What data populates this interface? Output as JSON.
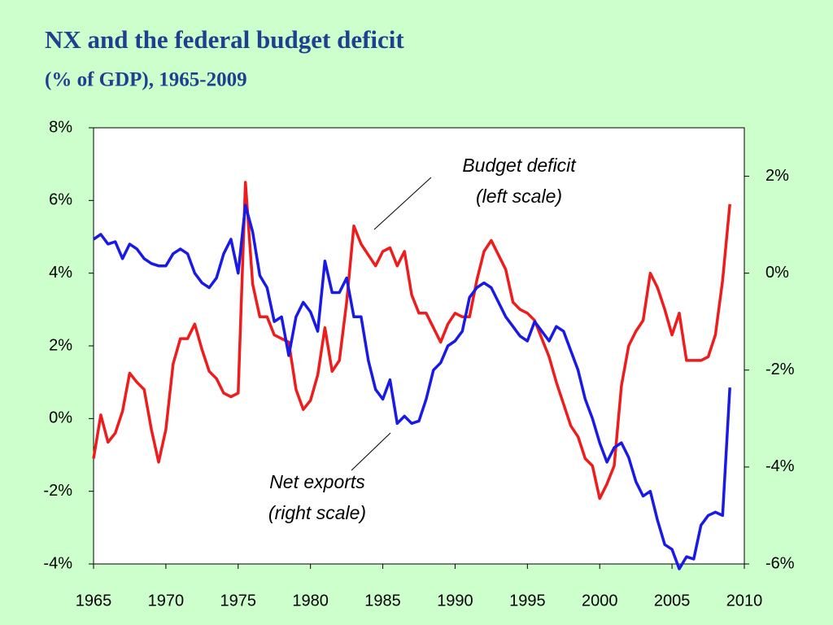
{
  "chart_data": {
    "type": "line",
    "title": "NX and the federal budget deficit",
    "subtitle": "(% of GDP), 1965-2009",
    "x": [
      1965,
      1965.5,
      1966,
      1966.5,
      1967,
      1967.5,
      1968,
      1968.5,
      1969,
      1969.5,
      1970,
      1970.5,
      1971,
      1971.5,
      1972,
      1972.5,
      1973,
      1973.5,
      1974,
      1974.5,
      1975,
      1975.5,
      1976,
      1976.5,
      1977,
      1977.5,
      1978,
      1978.5,
      1979,
      1979.5,
      1980,
      1980.5,
      1981,
      1981.5,
      1982,
      1982.5,
      1983,
      1983.5,
      1984,
      1984.5,
      1985,
      1985.5,
      1986,
      1986.5,
      1987,
      1987.5,
      1988,
      1988.5,
      1989,
      1989.5,
      1990,
      1990.5,
      1991,
      1991.5,
      1992,
      1992.5,
      1993,
      1993.5,
      1994,
      1994.5,
      1995,
      1995.5,
      1996,
      1996.5,
      1997,
      1997.5,
      1998,
      1998.5,
      1999,
      1999.5,
      2000,
      2000.5,
      2001,
      2001.5,
      2002,
      2002.5,
      2003,
      2003.5,
      2004,
      2004.5,
      2005,
      2005.5,
      2006,
      2006.5,
      2007,
      2007.5,
      2008,
      2008.5,
      2009
    ],
    "series": [
      {
        "label": [
          "Budget deficit",
          "(left scale)"
        ],
        "color": "#ee1c1c",
        "axis": "y",
        "values": [
          -1.1,
          0.1,
          -0.65,
          -0.4,
          0.2,
          1.25,
          1.0,
          0.8,
          -0.3,
          -1.2,
          -0.3,
          1.5,
          2.2,
          2.2,
          2.6,
          1.9,
          1.3,
          1.1,
          0.7,
          0.6,
          0.7,
          6.5,
          3.7,
          2.8,
          2.8,
          2.3,
          2.2,
          2.1,
          0.8,
          0.25,
          0.5,
          1.2,
          2.5,
          1.3,
          1.6,
          3.2,
          5.3,
          4.8,
          4.5,
          4.2,
          4.6,
          4.7,
          4.2,
          4.6,
          3.4,
          2.9,
          2.9,
          2.5,
          2.1,
          2.6,
          2.9,
          2.8,
          2.8,
          3.8,
          4.6,
          4.9,
          4.5,
          4.1,
          3.2,
          3.0,
          2.9,
          2.7,
          2.2,
          1.7,
          1.0,
          0.4,
          -0.2,
          -0.5,
          -1.1,
          -1.3,
          -2.2,
          -1.8,
          -1.3,
          0.9,
          2.0,
          2.4,
          2.7,
          4.0,
          3.6,
          3.0,
          2.3,
          2.9,
          1.6,
          1.6,
          1.6,
          1.7,
          2.3,
          3.8,
          5.9
        ]
      },
      {
        "label": [
          "Net exports",
          "(right scale)"
        ],
        "color": "#1a1ae6",
        "axis": "y2",
        "values": [
          0.7,
          0.8,
          0.6,
          0.65,
          0.3,
          0.6,
          0.5,
          0.3,
          0.2,
          0.15,
          0.15,
          0.4,
          0.5,
          0.4,
          0.0,
          -0.2,
          -0.3,
          -0.1,
          0.4,
          0.7,
          0.0,
          1.4,
          0.85,
          -0.05,
          -0.3,
          -1.0,
          -0.9,
          -1.7,
          -0.9,
          -0.6,
          -0.8,
          -1.2,
          0.25,
          -0.4,
          -0.4,
          -0.1,
          -0.9,
          -0.9,
          -1.8,
          -2.4,
          -2.6,
          -2.2,
          -3.1,
          -2.95,
          -3.1,
          -3.05,
          -2.6,
          -2.0,
          -1.85,
          -1.5,
          -1.4,
          -1.2,
          -0.5,
          -0.3,
          -0.2,
          -0.3,
          -0.6,
          -0.9,
          -1.1,
          -1.3,
          -1.4,
          -1.0,
          -1.2,
          -1.4,
          -1.1,
          -1.2,
          -1.6,
          -2.0,
          -2.6,
          -3.0,
          -3.5,
          -3.9,
          -3.6,
          -3.5,
          -3.8,
          -4.3,
          -4.6,
          -4.5,
          -5.1,
          -5.6,
          -5.7,
          -6.1,
          -5.85,
          -5.9,
          -5.2,
          -5.0,
          -4.93,
          -5.0,
          -2.36
        ]
      }
    ],
    "xlim": [
      1965,
      2010
    ],
    "xticks": [
      1965,
      1970,
      1975,
      1980,
      1985,
      1990,
      1995,
      2000,
      2005,
      2010
    ],
    "ylim": [
      -4,
      8
    ],
    "yticks": [
      {
        "value": -4,
        "label": "-4%"
      },
      {
        "value": -2,
        "label": "-2%"
      },
      {
        "value": 0,
        "label": "0%"
      },
      {
        "value": 2,
        "label": "2%"
      },
      {
        "value": 4,
        "label": "4%"
      },
      {
        "value": 6,
        "label": "6%"
      },
      {
        "value": 8,
        "label": "8%"
      }
    ],
    "y2lim": [
      -6,
      3
    ],
    "y2ticks": [
      {
        "value": -6,
        "label": "-6%"
      },
      {
        "value": -4,
        "label": "-4%"
      },
      {
        "value": -2,
        "label": "-2%"
      },
      {
        "value": 0,
        "label": "0%"
      },
      {
        "value": 2,
        "label": "2%"
      }
    ]
  }
}
